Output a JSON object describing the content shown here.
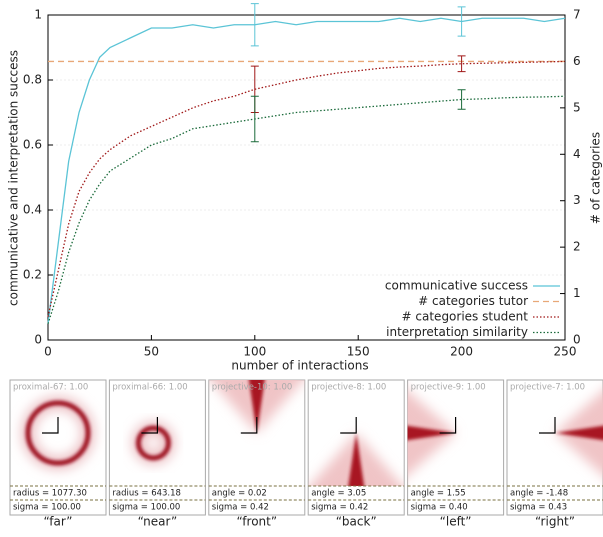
{
  "chart_data": {
    "type": "line",
    "x_label": "number of interactions",
    "y_label": "communicative and interpretation success",
    "y2_label": "# of categories",
    "x": [
      0,
      5,
      10,
      15,
      20,
      25,
      30,
      40,
      50,
      60,
      70,
      80,
      90,
      100,
      110,
      120,
      130,
      140,
      150,
      160,
      170,
      180,
      190,
      200,
      210,
      220,
      230,
      240,
      250
    ],
    "xlim": [
      0,
      250
    ],
    "xticks": [
      0,
      50,
      100,
      150,
      200,
      250
    ],
    "ylim": [
      0,
      1
    ],
    "yticks": [
      0,
      0.2,
      0.4,
      0.6,
      0.8,
      1
    ],
    "y2lim": [
      0,
      7
    ],
    "y2ticks": [
      0,
      1,
      2,
      3,
      4,
      5,
      6,
      7
    ],
    "grid": true,
    "legend": "lower right",
    "error_at": [
      100,
      200
    ],
    "series": [
      {
        "name": "communicative success",
        "color": "#5bc4d6",
        "style": "solid",
        "values": [
          0.05,
          0.3,
          0.55,
          0.7,
          0.8,
          0.87,
          0.9,
          0.93,
          0.96,
          0.96,
          0.97,
          0.96,
          0.97,
          0.97,
          0.98,
          0.97,
          0.98,
          0.98,
          0.98,
          0.98,
          0.99,
          0.98,
          0.99,
          0.98,
          0.99,
          0.99,
          0.99,
          0.98,
          0.99
        ],
        "errors": [
          0.065,
          0.045
        ]
      },
      {
        "name": "# categories tutor",
        "color": "#e8a878",
        "style": "dashed",
        "axis": "y2",
        "values": [
          6,
          6,
          6,
          6,
          6,
          6,
          6,
          6,
          6,
          6,
          6,
          6,
          6,
          6,
          6,
          6,
          6,
          6,
          6,
          6,
          6,
          6,
          6,
          6,
          6,
          6,
          6,
          6,
          6
        ]
      },
      {
        "name": "# categories student",
        "color": "#a01818",
        "style": "dotted",
        "axis": "y2",
        "values": [
          0.5,
          1.5,
          2.5,
          3.2,
          3.6,
          3.9,
          4.1,
          4.4,
          4.6,
          4.8,
          5.0,
          5.15,
          5.25,
          5.4,
          5.5,
          5.6,
          5.68,
          5.75,
          5.8,
          5.85,
          5.88,
          5.9,
          5.93,
          5.95,
          5.96,
          5.97,
          5.98,
          5.99,
          6.0
        ],
        "errors": [
          0.5,
          0.17
        ]
      },
      {
        "name": "interpretation similarity",
        "color": "#1a6a3a",
        "style": "dotted",
        "values": [
          0.05,
          0.15,
          0.27,
          0.36,
          0.43,
          0.48,
          0.52,
          0.56,
          0.6,
          0.62,
          0.65,
          0.66,
          0.67,
          0.68,
          0.69,
          0.7,
          0.705,
          0.71,
          0.715,
          0.72,
          0.725,
          0.73,
          0.735,
          0.74,
          0.742,
          0.745,
          0.747,
          0.748,
          0.75
        ],
        "errors": [
          0.07,
          0.03
        ]
      }
    ]
  },
  "panels": [
    {
      "header": "proximal-67: 1.00",
      "param": "radius = 1077.30",
      "sigma": "sigma = 100.00",
      "caption": "“far”"
    },
    {
      "header": "proximal-66: 1.00",
      "param": "radius = 643.18",
      "sigma": "sigma = 100.00",
      "caption": "“near”"
    },
    {
      "header": "projective-10: 1.00",
      "param": "angle = 0.02",
      "sigma": "sigma = 0.42",
      "caption": "“front”"
    },
    {
      "header": "projective-8: 1.00",
      "param": "angle = 3.05",
      "sigma": "sigma = 0.42",
      "caption": "“back”"
    },
    {
      "header": "projective-9: 1.00",
      "param": "angle = 1.55",
      "sigma": "sigma = 0.40",
      "caption": "“left”"
    },
    {
      "header": "projective-7: 1.00",
      "param": "angle = -1.48",
      "sigma": "sigma = 0.43",
      "caption": "“right”"
    }
  ]
}
